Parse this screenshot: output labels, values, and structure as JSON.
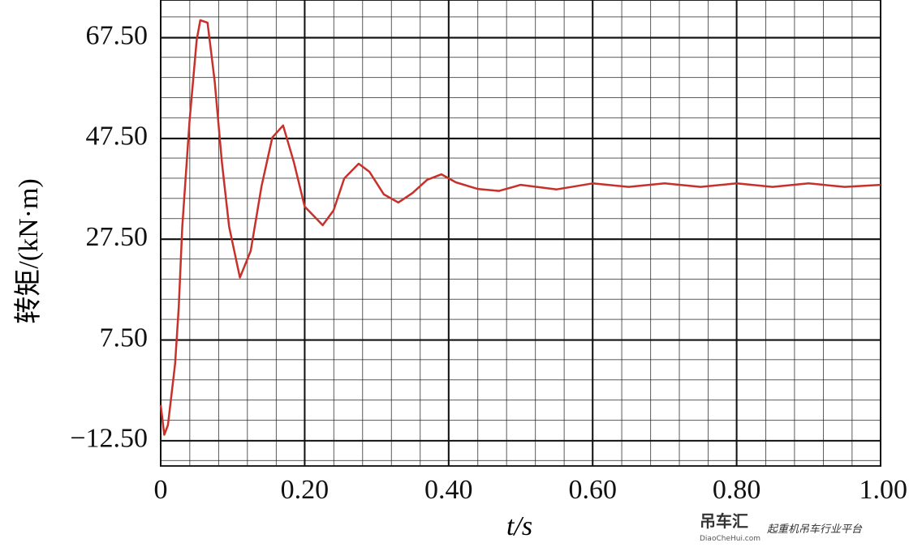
{
  "chart_data": {
    "type": "line",
    "y_label": "转矩/(kN·m)",
    "x_label": "t/s",
    "x": [
      0,
      0.005,
      0.01,
      0.02,
      0.025,
      0.03,
      0.04,
      0.05,
      0.055,
      0.065,
      0.075,
      0.085,
      0.095,
      0.11,
      0.125,
      0.14,
      0.155,
      0.17,
      0.185,
      0.2,
      0.225,
      0.24,
      0.255,
      0.275,
      0.29,
      0.31,
      0.33,
      0.35,
      0.37,
      0.39,
      0.41,
      0.44,
      0.47,
      0.5,
      0.55,
      0.6,
      0.65,
      0.7,
      0.75,
      0.8,
      0.85,
      0.9,
      0.95,
      1
    ],
    "values": [
      -5.4,
      -11.3,
      -9.4,
      2.7,
      13.9,
      30,
      50.9,
      67,
      71,
      70.5,
      58.9,
      42.8,
      30,
      19.9,
      25.2,
      38,
      47.7,
      50.1,
      42.8,
      34,
      30.3,
      33.2,
      39.6,
      42.5,
      40.9,
      36.4,
      34.8,
      36.7,
      39.3,
      40.4,
      38.8,
      37.5,
      37.1,
      38.3,
      37.4,
      38.6,
      37.9,
      38.6,
      37.9,
      38.6,
      37.9,
      38.6,
      37.9,
      38.3
    ],
    "color": "#c8302a",
    "xlim": [
      0,
      1
    ],
    "xticks": [
      0,
      {
        "value": 0.2,
        "label": "0.20"
      },
      {
        "value": 0.4,
        "label": "0.40"
      },
      {
        "value": 0.6,
        "label": "0.60"
      },
      {
        "value": 0.8,
        "label": "0.80"
      },
      {
        "value": 1,
        "label": "1.00"
      }
    ],
    "ylim": [
      -17.5,
      75
    ],
    "yticks": [
      {
        "value": -12.5,
        "label": "−12.50"
      },
      {
        "value": 7.5,
        "label": "7.50"
      },
      {
        "value": 27.5,
        "label": "27.50"
      },
      {
        "value": 47.5,
        "label": "47.50"
      },
      {
        "value": 67.5,
        "label": "67.50"
      }
    ],
    "grid": true
  },
  "watermark": {
    "brand": "吊车汇",
    "site": "DiaoCheHui.com",
    "slogan": "起重机吊车行业平台"
  }
}
